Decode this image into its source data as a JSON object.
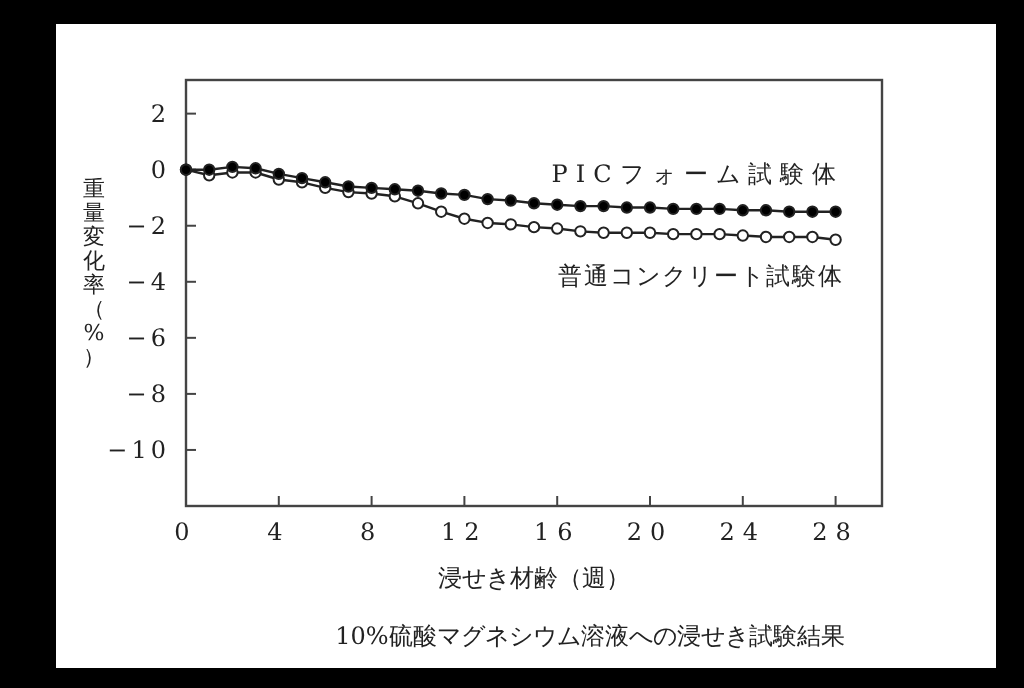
{
  "chart_data": {
    "type": "line",
    "xlabel": "浸せき材齢（週）",
    "ylabel": "重量変化率（%）",
    "annotations": [
      "10%硫酸マグネシウム溶液への浸せき試験結果"
    ],
    "x": [
      0,
      1,
      2,
      3,
      4,
      5,
      6,
      7,
      8,
      9,
      10,
      11,
      12,
      13,
      14,
      15,
      16,
      17,
      18,
      19,
      20,
      21,
      22,
      23,
      24,
      25,
      26,
      27,
      28
    ],
    "series": [
      {
        "name": "PICフォーム試験体",
        "color": "#000000",
        "values": [
          0,
          0,
          0.1,
          0.05,
          -0.15,
          -0.3,
          -0.45,
          -0.6,
          -0.65,
          -0.7,
          -0.75,
          -0.85,
          -0.9,
          -1.05,
          -1.1,
          -1.2,
          -1.25,
          -1.3,
          -1.3,
          -1.35,
          -1.35,
          -1.4,
          -1.4,
          -1.4,
          -1.45,
          -1.45,
          -1.5,
          -1.5,
          -1.5
        ]
      },
      {
        "name": "普通コンクリート試験体",
        "color": "#ffffff",
        "values": [
          0,
          -0.2,
          -0.1,
          -0.1,
          -0.35,
          -0.45,
          -0.65,
          -0.8,
          -0.85,
          -0.95,
          -1.2,
          -1.5,
          -1.75,
          -1.9,
          -1.95,
          -2.05,
          -2.1,
          -2.2,
          -2.25,
          -2.25,
          -2.25,
          -2.3,
          -2.3,
          -2.3,
          -2.35,
          -2.4,
          -2.4,
          -2.4,
          -2.5
        ]
      }
    ],
    "xlim": [
      0,
      30
    ],
    "ylim": [
      -12,
      3.2
    ],
    "xticks": [
      0,
      4,
      8,
      12,
      16,
      20,
      24,
      28
    ],
    "yticks": [
      -10,
      -8,
      -6,
      -4,
      -2,
      0,
      2
    ],
    "marker": "circle",
    "line_style": "solid",
    "grid": false
  }
}
